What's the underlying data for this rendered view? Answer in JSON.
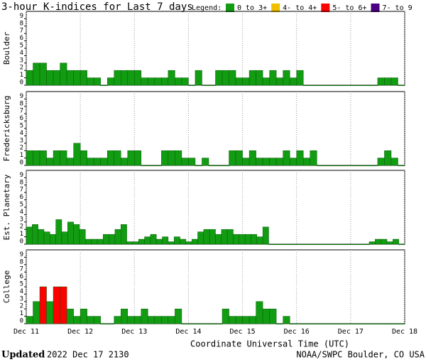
{
  "chart_data": {
    "type": "bar",
    "title": "3-hour K-indices for Last 7 days",
    "legend_title": "Legend:",
    "legend": [
      {
        "label": "0 to 3+",
        "color": "#129c12"
      },
      {
        "label": "4- to 4+",
        "color": "#f0c000"
      },
      {
        "label": "5- to 6+",
        "color": "#ff0000"
      },
      {
        "label": "7- to 9",
        "color": "#4b0082"
      }
    ],
    "x_label": "Coordinate Universal Time (UTC)",
    "xticks": [
      "Dec 11",
      "Dec 12",
      "Dec 13",
      "Dec 14",
      "Dec 15",
      "Dec 16",
      "Dec 17",
      "Dec 18"
    ],
    "ylim": [
      0,
      9
    ],
    "yticks": [
      0,
      1,
      2,
      3,
      4,
      5,
      6,
      7,
      8,
      9
    ],
    "grid": true,
    "panels": [
      {
        "name": "Boulder",
        "values": [
          2,
          3,
          3,
          2,
          2,
          3,
          2,
          2,
          2,
          1,
          1,
          0,
          1,
          2,
          2,
          2,
          2,
          1,
          1,
          1,
          1,
          2,
          1,
          1,
          0,
          2,
          0,
          0,
          2,
          2,
          2,
          1,
          1,
          2,
          2,
          1,
          2,
          1,
          2,
          1,
          2,
          0,
          0,
          0,
          0,
          0,
          0,
          0,
          0,
          0,
          0,
          0,
          1,
          1,
          1,
          0
        ]
      },
      {
        "name": "Fredericksburg",
        "values": [
          2,
          2,
          2,
          1,
          2,
          2,
          1,
          3,
          2,
          1,
          1,
          1,
          2,
          2,
          1,
          2,
          2,
          0,
          0,
          0,
          2,
          2,
          2,
          1,
          1,
          0,
          1,
          0,
          0,
          0,
          2,
          2,
          1,
          2,
          1,
          1,
          1,
          1,
          2,
          1,
          2,
          1,
          2,
          0,
          0,
          0,
          0,
          0,
          0,
          0,
          0,
          0,
          1,
          2,
          1,
          0
        ]
      },
      {
        "name": "Est. Planetary",
        "values": [
          2.33,
          2.67,
          2,
          1.67,
          1.33,
          3.33,
          1.67,
          3,
          2.67,
          2,
          0.67,
          0.67,
          0.67,
          1.33,
          1.33,
          2,
          2.67,
          0.33,
          0.33,
          0.67,
          1,
          1.33,
          0.67,
          1,
          0.33,
          1,
          0.67,
          0.33,
          0.67,
          1.67,
          2,
          2,
          1.33,
          2,
          2,
          1.33,
          1.33,
          1.33,
          1.33,
          1,
          2.33,
          0,
          0,
          0,
          0,
          0,
          0,
          0,
          0,
          0,
          0,
          0,
          0,
          0,
          0,
          0,
          0,
          0,
          0.33,
          0.67,
          0.67,
          0.33,
          0.67,
          0
        ]
      },
      {
        "name": "College",
        "values": [
          1,
          3,
          5,
          3,
          5,
          5,
          2,
          1,
          2,
          1,
          1,
          0,
          0,
          1,
          2,
          1,
          1,
          2,
          1,
          1,
          1,
          1,
          2,
          0,
          0,
          0,
          0,
          0,
          0,
          2,
          1,
          1,
          1,
          1,
          3,
          2,
          2,
          0,
          1,
          0,
          0,
          0,
          0,
          0,
          0,
          0,
          0,
          0,
          0,
          0,
          0,
          0,
          0,
          0,
          0,
          0
        ]
      }
    ]
  },
  "footer": {
    "updated_label": "Updated",
    "timestamp": "2022 Dec 17 2130",
    "credit": "NOAA/SWPC Boulder, CO USA"
  }
}
